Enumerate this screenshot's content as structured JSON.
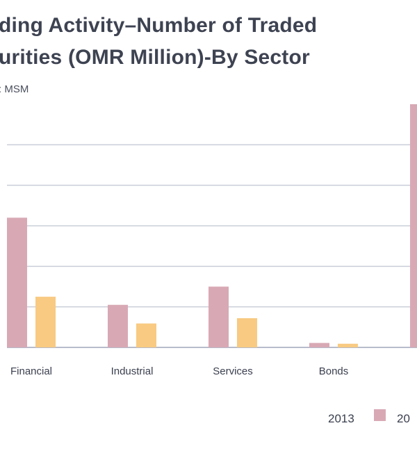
{
  "chart_data": {
    "type": "bar",
    "title_lines": [
      "ding Activity–Number of Traded",
      "urities (OMR Million)-By Sector"
    ],
    "source": ": MSM",
    "categories": [
      "Financial",
      "Industrial",
      "Services",
      "Bonds",
      ""
    ],
    "series": [
      {
        "name": "2013",
        "color": "#d8a9b5",
        "values": [
          32,
          10.5,
          15,
          1.1,
          60
        ]
      },
      {
        "name": "20",
        "color": "#f8ca82",
        "values": [
          12.5,
          5.9,
          7.2,
          0.9,
          null
        ]
      }
    ],
    "ylim": [
      0,
      60
    ],
    "grid": true,
    "legend_position": "bottom-right",
    "xlabel": "",
    "ylabel": ""
  }
}
